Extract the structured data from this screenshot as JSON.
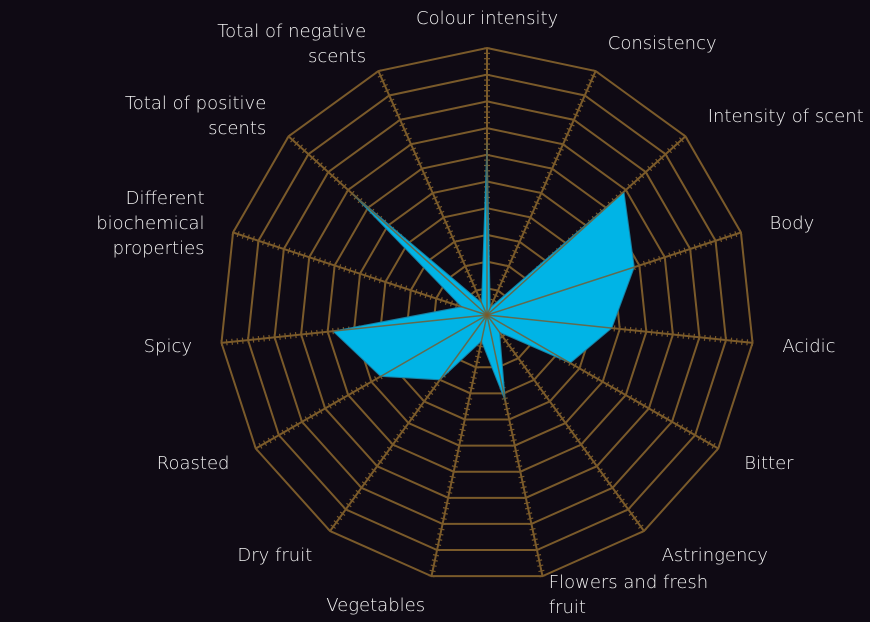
{
  "chart_data": {
    "type": "radar",
    "categories": [
      "Colour intensity",
      "Consistency",
      "Intensity of scent",
      "Body",
      "Acidic",
      "Bitter",
      "Astringency",
      "Flowers and fresh fruit",
      "Vegetables",
      "Dry fruit",
      "Roasted",
      "Spicy",
      "Different biochemical properties",
      "Total of positive scents",
      "Total of negative scents"
    ],
    "values": [
      6.5,
      0.3,
      6.9,
      5.8,
      4.7,
      3.6,
      0.8,
      3.3,
      1,
      3,
      4.6,
      5.8,
      1,
      6.8,
      0.5
    ],
    "color": "#00b4e6",
    "grid_color": "#7a5a2a",
    "rlim": [
      0,
      10
    ],
    "rticks": [
      1,
      2,
      3,
      4,
      5,
      6,
      7,
      8,
      9,
      10
    ]
  }
}
